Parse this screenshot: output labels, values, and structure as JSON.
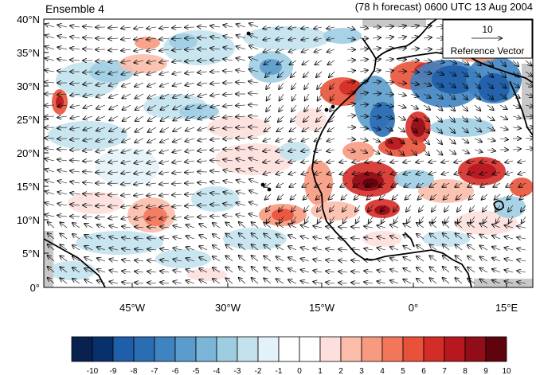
{
  "header": {
    "left_title": "Ensemble 4",
    "right_title": "(78 h forecast) 0600 UTC 13 Aug 2004"
  },
  "reference_vector": {
    "magnitude_label": "10",
    "caption": "Reference Vector"
  },
  "axes": {
    "lat_ticks": [
      "40°N",
      "35°N",
      "30°N",
      "25°N",
      "20°N",
      "15°N",
      "10°N",
      "5°N",
      "0°"
    ],
    "lon_ticks": [
      "45°W",
      "30°W",
      "15°W",
      "0°",
      "15°E"
    ]
  },
  "colorbar": {
    "labels": [
      "-10",
      "-9",
      "-8",
      "-7",
      "-6",
      "-5",
      "-4",
      "-3",
      "-2",
      "-1",
      "0",
      "1",
      "2",
      "3",
      "4",
      "5",
      "6",
      "7",
      "8",
      "9",
      "10"
    ],
    "colors": [
      "#08214f",
      "#08306b",
      "#1f5ea8",
      "#2b6db3",
      "#3f83c0",
      "#5b9ccc",
      "#7bb5d8",
      "#9ecde2",
      "#c3e2ee",
      "#e3f2f8",
      "#ffffff",
      "#ffffff",
      "#fde0dd",
      "#fbbcaa",
      "#f79a80",
      "#f2775a",
      "#e8523a",
      "#d42c27",
      "#b7171f",
      "#910d17",
      "#5f030c"
    ]
  },
  "map": {
    "ocean_fill": "#ffffff",
    "missing_fill": "#c8c8c8",
    "coast_color": "#000000"
  }
}
